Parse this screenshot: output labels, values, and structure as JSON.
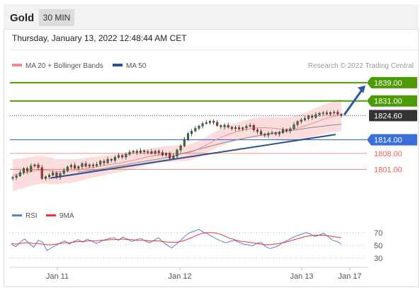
{
  "header": {
    "title": "Gold",
    "timeframe": "30 MIN",
    "datetime": "Thursday, January 13, 2022 12:48:44 AM CET"
  },
  "legend": {
    "ma20_bb": "MA 20 + Bollinger Bands",
    "ma50": "MA 50",
    "credit": "Research © 2022 Trading Central"
  },
  "rsi_legend": {
    "rsi": "RSI",
    "ma9": "9MA"
  },
  "colors": {
    "green": "#4c9a06",
    "blue": "#3a6fd8",
    "red": "#f05a5a",
    "bb_fill": "#f9d2d2",
    "ma50": "#2d4f8c",
    "candle_up": "#2e7d32",
    "candle_down": "#c62828",
    "rsi": "#5a7fd6",
    "rsi_ma": "#e53935"
  },
  "chart_data": [
    {
      "type": "candlestick",
      "title": "Gold",
      "ylim": [
        1790,
        1843
      ],
      "x_ticks": [
        "Jan 11",
        "Jan 12",
        "Jan 13",
        "Jan 17"
      ],
      "levels": [
        {
          "value": 1839.0,
          "label": "1839.00",
          "color": "#4c9a06",
          "style": "resistance"
        },
        {
          "value": 1831.0,
          "label": "1831.00",
          "color": "#4c9a06",
          "style": "resistance"
        },
        {
          "value": 1824.6,
          "label": "1824.60",
          "color": "#333333",
          "style": "last"
        },
        {
          "value": 1814.0,
          "label": "1814.00",
          "color": "#3a6fd8",
          "style": "pivot"
        },
        {
          "value": 1808.0,
          "label": "1808.00",
          "color": "#f05a5a",
          "style": "support"
        },
        {
          "value": 1801.0,
          "label": "1801.00",
          "color": "#f05a5a",
          "style": "support"
        }
      ],
      "close": [
        1797.5,
        1798.2,
        1799.6,
        1801.4,
        1800.2,
        1802.5,
        1803.0,
        1801.8,
        1797.0,
        1797.8,
        1798.5,
        1799.5,
        1797.6,
        1799.2,
        1800.5,
        1802.1,
        1802.8,
        1801.5,
        1802.2,
        1803.5,
        1802.4,
        1803.0,
        1802.6,
        1803.2,
        1804.6,
        1803.9,
        1805.4,
        1805.0,
        1806.3,
        1807.1,
        1806.4,
        1807.6,
        1808.6,
        1809.0,
        1808.4,
        1809.2,
        1808.7,
        1808.8,
        1808.1,
        1809.0,
        1808.4,
        1807.3,
        1808.0,
        1805.9,
        1806.8,
        1809.5,
        1811.3,
        1814.2,
        1816.7,
        1817.8,
        1819.0,
        1820.0,
        1821.1,
        1821.5,
        1822.1,
        1821.6,
        1820.2,
        1819.6,
        1820.4,
        1819.5,
        1818.9,
        1819.3,
        1818.7,
        1819.2,
        1819.9,
        1820.3,
        1818.3,
        1817.6,
        1816.4,
        1816.0,
        1816.8,
        1817.0,
        1816.5,
        1817.1,
        1818.4,
        1817.9,
        1818.8,
        1820.6,
        1822.0,
        1822.7,
        1823.3,
        1824.4,
        1823.8,
        1825.0,
        1825.6,
        1825.8,
        1825.3,
        1825.9,
        1826.1,
        1825.2,
        1824.6
      ],
      "ma20": [
        1798.5,
        1798.9,
        1799.2,
        1799.8,
        1800.2,
        1800.6,
        1800.8,
        1800.7,
        1800.3,
        1800.0,
        1800.1,
        1800.3,
        1800.2,
        1800.5,
        1800.9,
        1801.3,
        1801.8,
        1802.0,
        1802.4,
        1802.8,
        1803.1,
        1803.4,
        1803.7,
        1804.1,
        1804.6,
        1805.0,
        1805.5,
        1806.0,
        1806.5,
        1806.9,
        1807.2,
        1807.5,
        1807.8,
        1807.9,
        1808.0,
        1808.1,
        1808.3,
        1808.7,
        1809.5,
        1810.5,
        1811.6,
        1812.8,
        1813.9,
        1814.9,
        1815.8,
        1816.6,
        1817.3,
        1817.9,
        1818.4,
        1818.8,
        1819.1,
        1819.3,
        1819.3,
        1819.2,
        1819.0,
        1818.8,
        1818.6,
        1818.6,
        1818.8,
        1819.2,
        1819.8,
        1820.5,
        1821.2,
        1822.0,
        1822.8,
        1823.4,
        1824.0,
        1824.4,
        1824.8
      ],
      "ma50": [
        1800.0,
        1800.3,
        1800.7,
        1801.2,
        1801.8,
        1802.4,
        1803.0,
        1803.6,
        1804.2,
        1804.8,
        1805.3,
        1805.9,
        1806.6,
        1807.5,
        1808.4,
        1809.3,
        1810.2,
        1811.1,
        1812.0,
        1812.8,
        1813.6,
        1814.3,
        1815.0,
        1815.6,
        1816.2,
        1816.8,
        1817.3,
        1817.8,
        1818.3,
        1818.8,
        1819.3,
        1819.7,
        1820.1,
        1820.5,
        1820.8
      ]
    },
    {
      "type": "line",
      "title": "RSI",
      "ylim": [
        20,
        82
      ],
      "y_ticks": [
        70,
        50,
        30
      ],
      "series": [
        {
          "name": "RSI",
          "values": [
            52,
            48,
            55,
            60,
            53,
            47,
            58,
            55,
            42,
            46,
            50,
            54,
            57,
            52,
            56,
            59,
            55,
            60,
            57,
            53,
            56,
            59,
            61,
            62,
            58,
            63,
            60,
            56,
            59,
            61,
            57,
            54,
            58,
            62,
            55,
            50,
            46,
            52,
            58,
            65,
            70,
            72,
            75,
            71,
            68,
            64,
            60,
            57,
            54,
            56,
            58,
            55,
            52,
            51,
            49,
            53,
            55,
            48,
            45,
            47,
            50,
            55,
            58,
            62,
            65,
            67,
            70,
            68,
            64,
            66,
            69,
            64,
            58,
            56,
            52
          ]
        },
        {
          "name": "9MA",
          "values": [
            53,
            52,
            53,
            54,
            54,
            53,
            53,
            52,
            51,
            51,
            52,
            53,
            54,
            54,
            55,
            56,
            56,
            57,
            57,
            57,
            58,
            58,
            59,
            59,
            59,
            60,
            59,
            59,
            58,
            58,
            58,
            57,
            57,
            57,
            56,
            55,
            55,
            55,
            56,
            58,
            61,
            64,
            67,
            69,
            70,
            70,
            69,
            67,
            64,
            61,
            59,
            57,
            56,
            55,
            54,
            53,
            52,
            51,
            51,
            52,
            53,
            54,
            56,
            58,
            60,
            62,
            64,
            65,
            66,
            66,
            66,
            65,
            64,
            63,
            62
          ]
        }
      ]
    }
  ]
}
